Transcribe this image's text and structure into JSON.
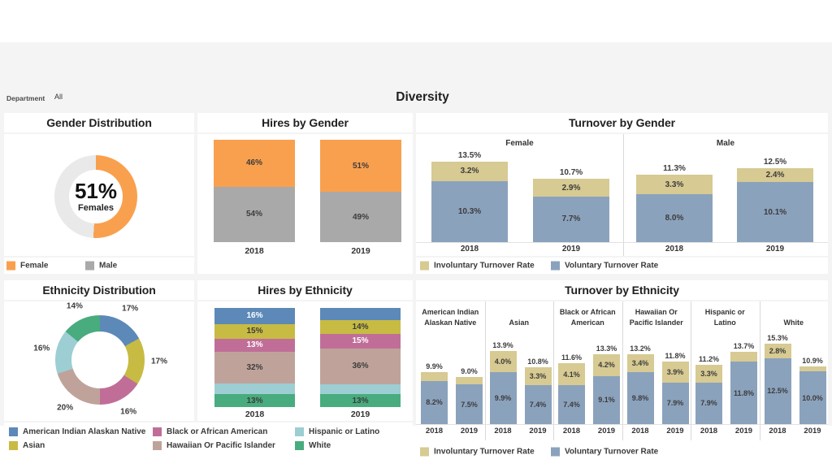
{
  "header": {
    "filter_label": "Department",
    "filter_value": "All",
    "dashboard_title": "Diversity"
  },
  "colors": {
    "female_orange": "#F9A04F",
    "male_gray": "#A9A9A9",
    "male_donut_gray": "#E9E9E9",
    "involuntary_tan": "#D7CA92",
    "voluntary_blue": "#8BA2BD",
    "ethnicity_aian_blue": "#5C89B8",
    "ethnicity_asian_yellow": "#C7BB43",
    "ethnicity_black_pink": "#C06E98",
    "ethnicity_hawaiian_tan": "#BFA39A",
    "ethnicity_hispanic_teal": "#9CCED3",
    "ethnicity_white_green": "#48AC7E"
  },
  "panels": {
    "gender_distribution": {
      "title": "Gender Distribution"
    },
    "hires_by_gender": {
      "title": "Hires by Gender"
    },
    "turnover_by_gender": {
      "title": "Turnover by Gender"
    },
    "ethnicity_distribution": {
      "title": "Ethnicity Distribution"
    },
    "hires_by_ethnicity": {
      "title": "Hires by Ethnicity"
    },
    "turnover_by_ethnicity": {
      "title": "Turnover by Ethnicity"
    }
  },
  "legends": {
    "gender": [
      {
        "label": "Female",
        "color": "female_orange"
      },
      {
        "label": "Male",
        "color": "male_gray"
      }
    ],
    "turnover": [
      {
        "label": "Involuntary Turnover Rate",
        "color": "involuntary_tan"
      },
      {
        "label": "Voluntary Turnover Rate",
        "color": "voluntary_blue"
      }
    ],
    "ethnicity_columns": [
      [
        {
          "label": "American Indian Alaskan Native",
          "color": "ethnicity_aian_blue"
        },
        {
          "label": "Asian",
          "color": "ethnicity_asian_yellow"
        }
      ],
      [
        {
          "label": "Black or African American",
          "color": "ethnicity_black_pink"
        },
        {
          "label": "Hawaiian Or Pacific Islander",
          "color": "ethnicity_hawaiian_tan"
        }
      ],
      [
        {
          "label": "Hispanic or Latino",
          "color": "ethnicity_hispanic_teal"
        },
        {
          "label": "White",
          "color": "ethnicity_white_green"
        }
      ]
    ]
  },
  "chart_data": [
    {
      "id": "gender_distribution",
      "type": "donut",
      "center_value": "51%",
      "center_label": "Females",
      "slices": [
        {
          "name": "Female",
          "value": 51,
          "label": null,
          "color": "female_orange"
        },
        {
          "name": "Male",
          "value": 49,
          "label": null,
          "color": "male_donut_gray"
        }
      ]
    },
    {
      "id": "hires_by_gender",
      "type": "stacked-bar-100",
      "categories": [
        "2018",
        "2019"
      ],
      "bars": [
        {
          "category": "2018",
          "segments": [
            {
              "name": "Female",
              "value": 46,
              "label": "46%",
              "color": "female_orange",
              "label_style": "dark"
            },
            {
              "name": "Male",
              "value": 54,
              "label": "54%",
              "color": "male_gray",
              "label_style": "dark"
            }
          ]
        },
        {
          "category": "2019",
          "segments": [
            {
              "name": "Female",
              "value": 51,
              "label": "51%",
              "color": "female_orange",
              "label_style": "dark"
            },
            {
              "name": "Male",
              "value": 49,
              "label": "49%",
              "color": "male_gray",
              "label_style": "dark"
            }
          ]
        }
      ]
    },
    {
      "id": "turnover_by_gender",
      "type": "grouped-stacked-bar",
      "unit": "%",
      "series": [
        "Involuntary Turnover Rate",
        "Voluntary Turnover Rate"
      ],
      "groups": [
        {
          "name": "Female",
          "name_lines": [
            "Female"
          ],
          "bars": [
            {
              "category": "2018",
              "total_label": "13.5%",
              "involuntary": 3.2,
              "involuntary_label": "3.2%",
              "voluntary": 10.3,
              "voluntary_label": "10.3%"
            },
            {
              "category": "2019",
              "total_label": "10.7%",
              "involuntary": 2.9,
              "involuntary_label": "2.9%",
              "voluntary": 7.7,
              "voluntary_label": "7.7%"
            }
          ]
        },
        {
          "name": "Male",
          "name_lines": [
            "Male"
          ],
          "bars": [
            {
              "category": "2018",
              "total_label": "11.3%",
              "involuntary": 3.3,
              "involuntary_label": "3.3%",
              "voluntary": 8.0,
              "voluntary_label": "8.0%"
            },
            {
              "category": "2019",
              "total_label": "12.5%",
              "involuntary": 2.4,
              "involuntary_label": "2.4%",
              "voluntary": 10.1,
              "voluntary_label": "10.1%"
            }
          ]
        }
      ]
    },
    {
      "id": "ethnicity_distribution",
      "type": "donut",
      "center_value": null,
      "center_label": null,
      "slices": [
        {
          "name": "American Indian Alaskan Native",
          "value": 17,
          "label": "17%",
          "color": "ethnicity_aian_blue"
        },
        {
          "name": "Asian",
          "value": 17,
          "label": "17%",
          "color": "ethnicity_asian_yellow"
        },
        {
          "name": "Black or African American",
          "value": 16,
          "label": "16%",
          "color": "ethnicity_black_pink"
        },
        {
          "name": "Hawaiian Or Pacific Islander",
          "value": 20,
          "label": "20%",
          "color": "ethnicity_hawaiian_tan"
        },
        {
          "name": "Hispanic or Latino",
          "value": 16,
          "label": "16%",
          "color": "ethnicity_hispanic_teal"
        },
        {
          "name": "White",
          "value": 14,
          "label": "14%",
          "color": "ethnicity_white_green"
        }
      ]
    },
    {
      "id": "hires_by_ethnicity",
      "type": "stacked-bar-100",
      "categories": [
        "2018",
        "2019"
      ],
      "bars": [
        {
          "category": "2018",
          "segments": [
            {
              "name": "American Indian Alaskan Native",
              "value": 16,
              "label": "16%",
              "color": "ethnicity_aian_blue",
              "label_style": "light"
            },
            {
              "name": "Asian",
              "value": 15,
              "label": "15%",
              "color": "ethnicity_asian_yellow",
              "label_style": "dark"
            },
            {
              "name": "Black or African American",
              "value": 13,
              "label": "13%",
              "color": "ethnicity_black_pink",
              "label_style": "light"
            },
            {
              "name": "Hawaiian Or Pacific Islander",
              "value": 32,
              "label": "32%",
              "color": "ethnicity_hawaiian_tan",
              "label_style": "dark"
            },
            {
              "name": "Hispanic or Latino",
              "value": 11,
              "label": null,
              "color": "ethnicity_hispanic_teal",
              "label_style": "dark"
            },
            {
              "name": "White",
              "value": 13,
              "label": "13%",
              "color": "ethnicity_white_green",
              "label_style": "dark"
            }
          ]
        },
        {
          "category": "2019",
          "segments": [
            {
              "name": "American Indian Alaskan Native",
              "value": 12,
              "label": null,
              "color": "ethnicity_aian_blue",
              "label_style": "light"
            },
            {
              "name": "Asian",
              "value": 14,
              "label": "14%",
              "color": "ethnicity_asian_yellow",
              "label_style": "dark"
            },
            {
              "name": "Black or African American",
              "value": 15,
              "label": "15%",
              "color": "ethnicity_black_pink",
              "label_style": "light"
            },
            {
              "name": "Hawaiian Or Pacific Islander",
              "value": 36,
              "label": "36%",
              "color": "ethnicity_hawaiian_tan",
              "label_style": "dark"
            },
            {
              "name": "Hispanic or Latino",
              "value": 10,
              "label": null,
              "color": "ethnicity_hispanic_teal",
              "label_style": "dark"
            },
            {
              "name": "White",
              "value": 13,
              "label": "13%",
              "color": "ethnicity_white_green",
              "label_style": "dark"
            }
          ]
        }
      ]
    },
    {
      "id": "turnover_by_ethnicity",
      "type": "grouped-stacked-bar",
      "unit": "%",
      "series": [
        "Involuntary Turnover Rate",
        "Voluntary Turnover Rate"
      ],
      "groups": [
        {
          "name": "American Indian Alaskan Native",
          "name_lines": [
            "American Indian",
            "Alaskan Native"
          ],
          "bars": [
            {
              "category": "2018",
              "total_label": "9.9%",
              "involuntary": 1.7,
              "involuntary_label": null,
              "voluntary": 8.2,
              "voluntary_label": "8.2%"
            },
            {
              "category": "2019",
              "total_label": "9.0%",
              "involuntary": 1.5,
              "involuntary_label": null,
              "voluntary": 7.5,
              "voluntary_label": "7.5%"
            }
          ]
        },
        {
          "name": "Asian",
          "name_lines": [
            "Asian"
          ],
          "bars": [
            {
              "category": "2018",
              "total_label": "13.9%",
              "involuntary": 4.0,
              "involuntary_label": "4.0%",
              "voluntary": 9.9,
              "voluntary_label": "9.9%"
            },
            {
              "category": "2019",
              "total_label": "10.8%",
              "involuntary": 3.3,
              "involuntary_label": "3.3%",
              "voluntary": 7.4,
              "voluntary_label": "7.4%"
            }
          ]
        },
        {
          "name": "Black or African American",
          "name_lines": [
            "Black or African",
            "American"
          ],
          "bars": [
            {
              "category": "2018",
              "total_label": "11.6%",
              "involuntary": 4.1,
              "involuntary_label": "4.1%",
              "voluntary": 7.4,
              "voluntary_label": "7.4%"
            },
            {
              "category": "2019",
              "total_label": "13.3%",
              "involuntary": 4.2,
              "involuntary_label": "4.2%",
              "voluntary": 9.1,
              "voluntary_label": "9.1%"
            }
          ]
        },
        {
          "name": "Hawaiian Or Pacific Islander",
          "name_lines": [
            "Hawaiian Or",
            "Pacific Islander"
          ],
          "bars": [
            {
              "category": "2018",
              "total_label": "13.2%",
              "involuntary": 3.4,
              "involuntary_label": "3.4%",
              "voluntary": 9.8,
              "voluntary_label": "9.8%"
            },
            {
              "category": "2019",
              "total_label": "11.8%",
              "involuntary": 3.9,
              "involuntary_label": "3.9%",
              "voluntary": 7.9,
              "voluntary_label": "7.9%"
            }
          ]
        },
        {
          "name": "Hispanic or Latino",
          "name_lines": [
            "Hispanic or",
            "Latino"
          ],
          "bars": [
            {
              "category": "2018",
              "total_label": "11.2%",
              "involuntary": 3.3,
              "involuntary_label": "3.3%",
              "voluntary": 7.9,
              "voluntary_label": "7.9%"
            },
            {
              "category": "2019",
              "total_label": "13.7%",
              "involuntary": 1.9,
              "involuntary_label": null,
              "voluntary": 11.8,
              "voluntary_label": "11.8%"
            }
          ]
        },
        {
          "name": "White",
          "name_lines": [
            "White"
          ],
          "bars": [
            {
              "category": "2018",
              "total_label": "15.3%",
              "involuntary": 2.8,
              "involuntary_label": "2.8%",
              "voluntary": 12.5,
              "voluntary_label": "12.5%"
            },
            {
              "category": "2019",
              "total_label": "10.9%",
              "involuntary": 0.9,
              "involuntary_label": null,
              "voluntary": 10.0,
              "voluntary_label": "10.0%"
            }
          ]
        }
      ]
    }
  ]
}
